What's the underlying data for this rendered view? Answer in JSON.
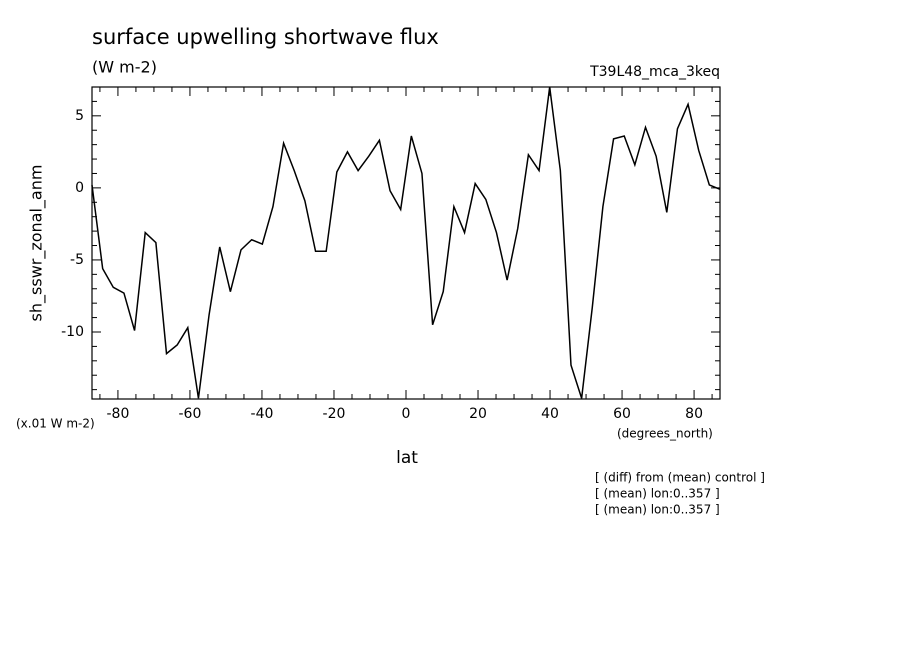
{
  "chart_data": {
    "type": "line",
    "title": "surface upwelling shortwave flux",
    "subtitle": "(W m-2)",
    "experiment": "T39L48_mca_3keq",
    "y_label": "sh_sswr_zonal_anm",
    "y_units": "(x.01 W m-2)",
    "x_label": "lat",
    "x_units": "(degrees_north)",
    "notes": [
      "[ (diff) from (mean) control ]",
      "[ (mean) lon:0..357 ]",
      "[ (mean) lon:0..357 ]"
    ],
    "x": [
      -87.2,
      -84.24,
      -81.29,
      -78.33,
      -75.38,
      -72.42,
      -69.46,
      -66.51,
      -63.55,
      -60.6,
      -57.64,
      -54.68,
      -51.73,
      -48.77,
      -45.82,
      -42.86,
      -39.9,
      -36.95,
      -33.99,
      -31.04,
      -28.08,
      -25.12,
      -22.17,
      -19.21,
      -16.26,
      -13.3,
      -10.34,
      -7.39,
      -4.43,
      -1.48,
      1.48,
      4.43,
      7.39,
      10.34,
      13.3,
      16.26,
      19.21,
      22.17,
      25.12,
      28.08,
      31.04,
      33.99,
      36.95,
      39.9,
      42.86,
      45.82,
      48.77,
      51.73,
      54.68,
      57.64,
      60.6,
      63.55,
      66.51,
      69.46,
      72.42,
      75.38,
      78.33,
      81.29,
      84.24,
      87.2
    ],
    "values": [
      0.2,
      -5.6,
      -6.9,
      -7.3,
      -9.9,
      -3.1,
      -3.8,
      -11.5,
      -10.9,
      -9.7,
      -14.6,
      -8.8,
      -4.1,
      -7.2,
      -4.3,
      -3.6,
      -3.9,
      -1.3,
      3.1,
      1.2,
      -0.9,
      -4.4,
      -4.4,
      1.1,
      2.5,
      1.2,
      2.2,
      3.3,
      -0.2,
      -1.5,
      3.6,
      1.0,
      -9.5,
      -7.2,
      -1.3,
      -3.1,
      0.3,
      -0.8,
      -3.1,
      -6.4,
      -2.8,
      2.3,
      1.2,
      7.0,
      1.2,
      -12.3,
      -14.6,
      -8.3,
      -1.3,
      3.4,
      3.6,
      1.6,
      4.2,
      2.2,
      -1.7,
      4.1,
      5.8,
      2.6,
      0.2,
      -0.1
    ],
    "color": "#000000",
    "xlim": [
      -87.2,
      87.2
    ],
    "ylim": [
      -14.65,
      7.0
    ],
    "xticks": [
      -80,
      -60,
      -40,
      -20,
      0,
      20,
      40,
      60,
      80
    ],
    "yticks": [
      -10,
      -5,
      0,
      5
    ],
    "xminorticks": [
      -85,
      -75,
      -70,
      -65,
      -55,
      -50,
      -45,
      -35,
      -30,
      -25,
      -15,
      -10,
      -5,
      5,
      10,
      15,
      25,
      30,
      35,
      45,
      50,
      55,
      65,
      70,
      75,
      85
    ],
    "yminorticks": [
      -14,
      -13,
      -12,
      -11,
      -9,
      -8,
      -7,
      -6,
      -4,
      -3,
      -2,
      -1,
      1,
      2,
      3,
      4,
      6,
      7
    ]
  }
}
